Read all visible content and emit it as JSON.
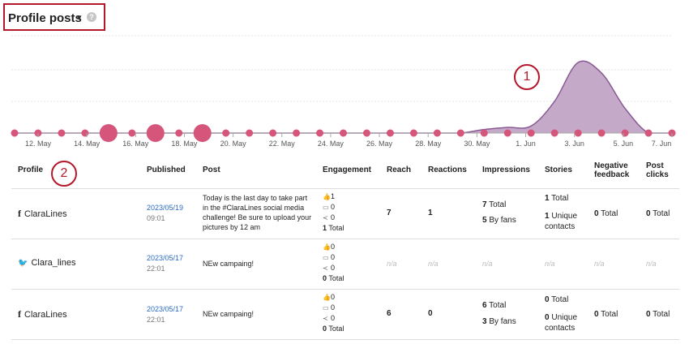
{
  "header": {
    "title": "Profile posts",
    "caret": "▾",
    "help": "?"
  },
  "callouts": {
    "one": "1",
    "two": "2"
  },
  "chart_data": {
    "type": "area",
    "x_tick_labels": [
      "12. May",
      "14. May",
      "16. May",
      "18. May",
      "20. May",
      "22. May",
      "24. May",
      "26. May",
      "28. May",
      "30. May",
      "1. Jun",
      "3. Jun",
      "5. Jun",
      "7. Jun"
    ],
    "series": [
      {
        "values": [
          0,
          0,
          0,
          0,
          0,
          0,
          0,
          0,
          0,
          0,
          0,
          0,
          0,
          0,
          0,
          0,
          0,
          0,
          0,
          0,
          0.05,
          0.08,
          0.1,
          0.45,
          1.0,
          0.85,
          0.35,
          0,
          0
        ]
      }
    ],
    "point_sizes": [
      "s",
      "s",
      "s",
      "s",
      "l",
      "s",
      "l",
      "s",
      "l",
      "s",
      "s",
      "s",
      "s",
      "s",
      "s",
      "s",
      "s",
      "s",
      "s",
      "s",
      "s",
      "s",
      "s",
      "s",
      "s",
      "s",
      "s",
      "s",
      "s"
    ],
    "colors": {
      "fill": "#c4a9c8",
      "line": "#8a5a95",
      "dot": "#d6557a"
    }
  },
  "table": {
    "headers": {
      "profile": "Profile",
      "published": "Published",
      "post": "Post",
      "engagement": "Engagement",
      "reach": "Reach",
      "reactions": "Reactions",
      "impressions": "Impressions",
      "stories": "Stories",
      "negative_feedback_1": "Negative",
      "negative_feedback_2": "feedback",
      "post_clicks_1": "Post",
      "post_clicks_2": "clicks"
    },
    "rows": [
      {
        "profile_icon": "f",
        "profile": "ClaraLines",
        "date": "2023/05/19",
        "time": "09:01",
        "post": "Today is the last day to take part in the #ClaraLines social media challenge! Be sure to upload your pictures by 12 am",
        "likes": "1",
        "comments": "0",
        "shares": "0",
        "eng_total": "1",
        "eng_total_label": "Total",
        "reach": "7",
        "reactions": "1",
        "imp_total": "7",
        "imp_total_label": "Total",
        "imp_fans": "5",
        "imp_fans_label": "By fans",
        "stories_total": "1",
        "stories_total_label": "Total",
        "stories_unique": "1",
        "stories_unique_label": "Unique",
        "stories_unique_label2": "contacts",
        "neg": "0",
        "neg_label": "Total",
        "clicks": "0",
        "clicks_label": "Total"
      },
      {
        "profile_icon": "🐦",
        "profile": "Clara_lines",
        "date": "2023/05/17",
        "time": "22:01",
        "post": "NEw campaing!",
        "likes": "0",
        "comments": "0",
        "shares": "0",
        "eng_total": "0",
        "eng_total_label": "Total",
        "na": "n/a"
      },
      {
        "profile_icon": "f",
        "profile": "ClaraLines",
        "date": "2023/05/17",
        "time": "22:01",
        "post": "NEw campaing!",
        "likes": "0",
        "comments": "0",
        "shares": "0",
        "eng_total": "0",
        "eng_total_label": "Total",
        "reach": "6",
        "reactions": "0",
        "imp_total": "6",
        "imp_total_label": "Total",
        "imp_fans": "3",
        "imp_fans_label": "By fans",
        "stories_total": "0",
        "stories_total_label": "Total",
        "stories_unique": "0",
        "stories_unique_label": "Unique",
        "stories_unique_label2": "contacts",
        "neg": "0",
        "neg_label": "Total",
        "clicks": "0",
        "clicks_label": "Total"
      }
    ]
  }
}
